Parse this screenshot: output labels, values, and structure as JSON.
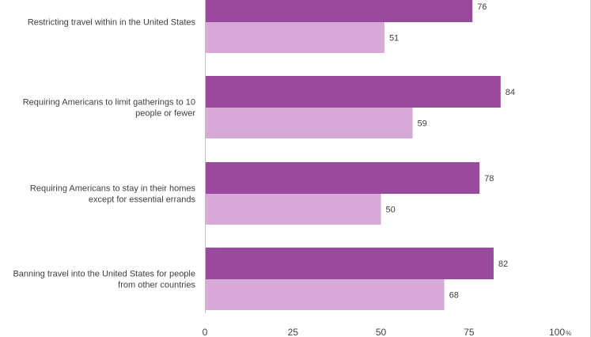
{
  "chart_data": {
    "type": "bar",
    "orientation": "horizontal",
    "categories": [
      [
        "Restricting travel within in the United States"
      ],
      [
        "Requiring Americans to limit gatherings to 10",
        "people or fewer"
      ],
      [
        "Requiring Americans to stay in their homes",
        "except for essential errands"
      ],
      [
        "Banning travel into the United States for people",
        "from other countries"
      ]
    ],
    "series": [
      {
        "values": [
          76,
          84,
          78,
          82
        ],
        "color": "#9a4a9c"
      },
      {
        "values": [
          51,
          59,
          50,
          68
        ],
        "color": "#d7a9d6"
      }
    ],
    "xlim": [
      0,
      100
    ],
    "x_ticks": [
      "0",
      "25",
      "50",
      "75",
      "100"
    ],
    "x_unit": "%",
    "grid": false,
    "title": "",
    "xlabel": "",
    "ylabel": ""
  }
}
